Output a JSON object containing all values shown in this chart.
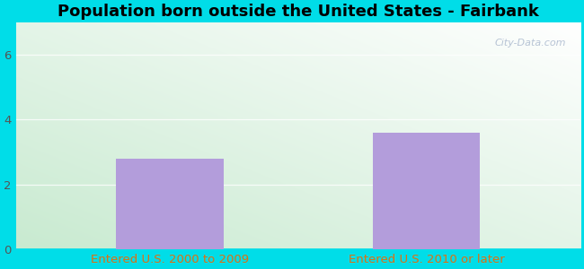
{
  "title": "Population born outside the United States - Fairbank",
  "categories": [
    "Entered U.S. 2000 to 2009",
    "Entered U.S. 2010 or later"
  ],
  "values": [
    2.8,
    3.6
  ],
  "bar_color": "#b39ddb",
  "ylim": [
    0,
    7
  ],
  "yticks": [
    0,
    2,
    4,
    6
  ],
  "xlabel_color": "#e07010",
  "title_fontsize": 13,
  "tick_fontsize": 9.5,
  "bg_outer": "#00dde8",
  "watermark": "City-Data.com",
  "xlim": [
    -0.6,
    1.6
  ],
  "bar_width": 0.42,
  "x_positions": [
    0,
    1
  ],
  "grid_color": "#dddddd",
  "bg_topleft": "#d8f0d8",
  "bg_topright": "#f0fff8",
  "bg_bottomleft": "#c8ead0",
  "bg_bottomright": "#e8fdf0"
}
